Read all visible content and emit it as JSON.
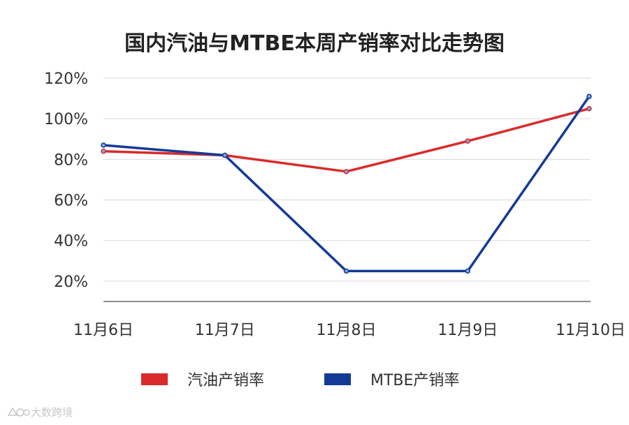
{
  "chart_data": {
    "type": "line",
    "title": "国内汽油与MTBE本周产销率对比走势图",
    "categories": [
      "11月6日",
      "11月7日",
      "11月8日",
      "11月9日",
      "11月10日"
    ],
    "series": [
      {
        "name": "汽油产销率",
        "color": "#d92b2b",
        "values": [
          84,
          82,
          74,
          89,
          105
        ]
      },
      {
        "name": "MTBE产销率",
        "color": "#143a96",
        "values": [
          87,
          82,
          25,
          25,
          111
        ]
      }
    ],
    "y_ticks": [
      "20%",
      "40%",
      "60%",
      "80%",
      "100%",
      "120%"
    ],
    "ylim": [
      10,
      120
    ],
    "grid": true,
    "legend_position": "bottom"
  },
  "watermark": {
    "text": "大数跨境",
    "icon": "logo-icon"
  }
}
